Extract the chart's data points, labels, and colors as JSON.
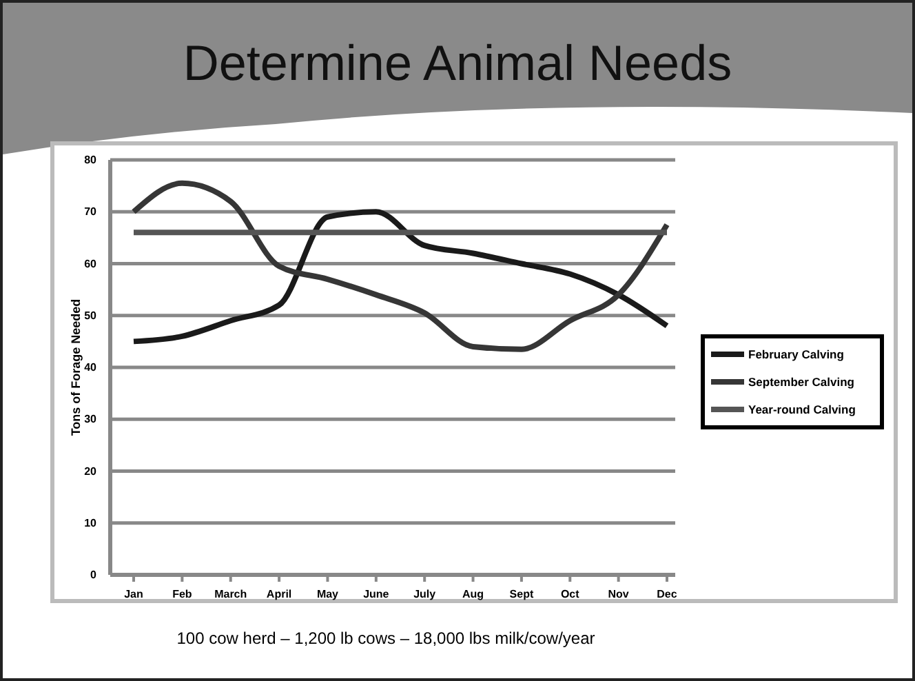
{
  "chart_data": {
    "type": "line",
    "title": "Determine Animal Needs",
    "subtitle": "100 cow herd – 1,200 lb cows – 18,000 lbs milk/cow/year",
    "ylabel": "Tons of Forage Needed",
    "categories": [
      "Jan",
      "Feb",
      "March",
      "April",
      "May",
      "June",
      "July",
      "Aug",
      "Sept",
      "Oct",
      "Nov",
      "Dec"
    ],
    "series": [
      {
        "name": "February Calving",
        "color": "#1a1a1a",
        "values": [
          45,
          46,
          49,
          52,
          69,
          70,
          63.5,
          62,
          60,
          58,
          54,
          48
        ]
      },
      {
        "name": "September Calving",
        "color": "#363636",
        "values": [
          70,
          75.5,
          72,
          59.5,
          57,
          54,
          50.5,
          44,
          43.5,
          49,
          54,
          67.5
        ]
      },
      {
        "name": "Year-round Calving",
        "color": "#555555",
        "values": [
          66,
          66,
          66,
          66,
          66,
          66,
          66,
          66,
          66,
          66,
          66,
          66
        ]
      }
    ],
    "ylim": [
      0,
      80
    ],
    "yticks": [
      0,
      10,
      20,
      30,
      40,
      50,
      60,
      70,
      80
    ],
    "grid": "y",
    "legend": "right",
    "marker": "none",
    "line_style": "solid"
  }
}
